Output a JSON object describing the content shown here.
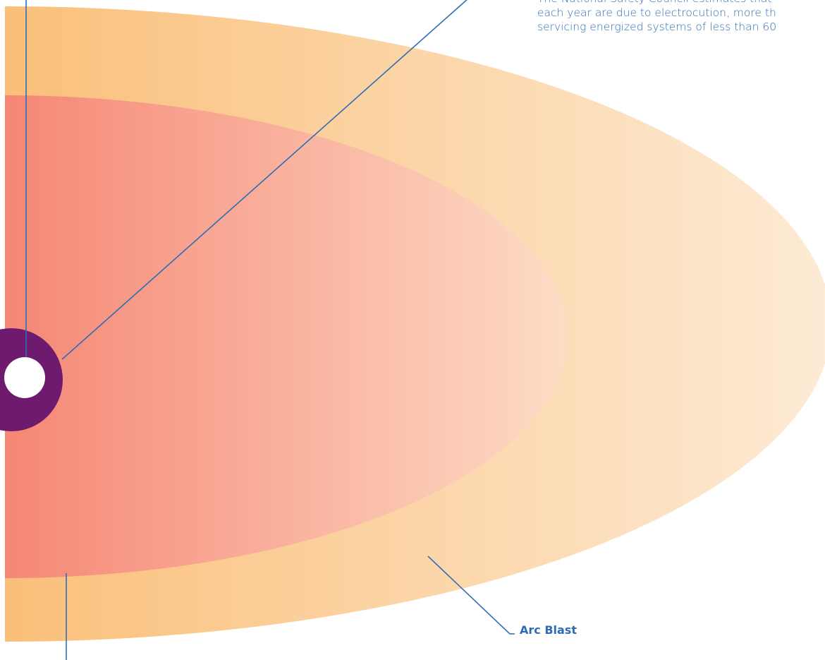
{
  "intro": {
    "lines": [
      "The National Safety Council estimates that",
      "each year are due to electrocution, more th",
      "servicing energized systems of less than 60"
    ]
  },
  "labels": {
    "arc_blast": "Arc Blast"
  },
  "colors": {
    "outer_zone_start": "#F7941D",
    "outer_zone_end": "#FDEBD6",
    "inner_zone_start": "#EE3124",
    "inner_zone_end": "#FDDCC6",
    "source_ring": "#6E1A6E",
    "source_core": "#FFFFFF",
    "leader_line": "#2E6DB4",
    "text": "#2E6DB4"
  }
}
